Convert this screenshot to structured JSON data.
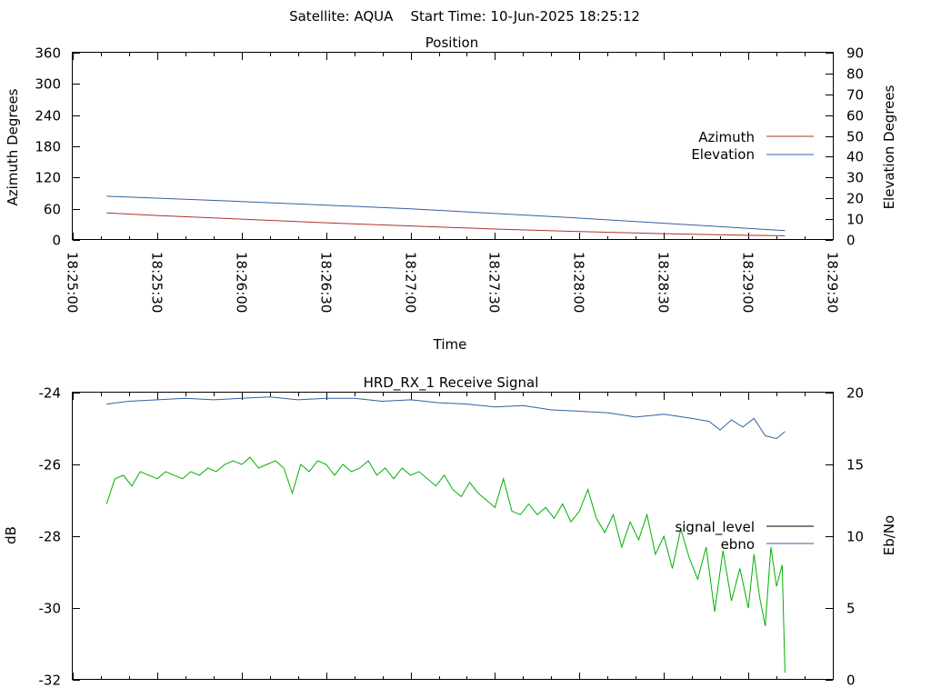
{
  "header": {
    "text": "Satellite: AQUA    Start Time: 10-Jun-2025 18:25:12"
  },
  "chart_data": [
    {
      "type": "line",
      "title": "Position",
      "xlabel": "Time",
      "ylabel": "Azimuth Degrees",
      "y2label": "Elevation Degrees",
      "x_ticks": [
        "18:25:00",
        "18:25:30",
        "18:26:00",
        "18:26:30",
        "18:27:00",
        "18:27:30",
        "18:28:00",
        "18:28:30",
        "18:29:00",
        "18:29:30"
      ],
      "xlim_seconds": [
        0,
        270
      ],
      "ylim": [
        0,
        360
      ],
      "y_ticks": [
        0,
        60,
        120,
        180,
        240,
        300,
        360
      ],
      "y2lim": [
        0,
        90
      ],
      "y2_ticks": [
        0,
        10,
        20,
        30,
        40,
        50,
        60,
        70,
        80,
        90
      ],
      "legend_position": "right",
      "series": [
        {
          "name": "Azimuth",
          "axis": "left",
          "color": "#b03030",
          "x_seconds": [
            12,
            30,
            60,
            90,
            120,
            150,
            180,
            210,
            240,
            253
          ],
          "values": [
            52,
            47,
            40,
            33,
            27,
            21,
            16,
            12,
            9,
            8
          ]
        },
        {
          "name": "Elevation",
          "axis": "right",
          "color": "#3060a0",
          "x_seconds": [
            12,
            60,
            120,
            180,
            253
          ],
          "values": [
            21,
            18.5,
            15,
            10.5,
            4.5
          ]
        }
      ]
    },
    {
      "type": "line",
      "title": "HRD_RX_1 Receive Signal",
      "ylabel": "dB",
      "y2label": "Eb/No",
      "xlim_seconds": [
        0,
        270
      ],
      "ylim": [
        -32,
        -24
      ],
      "y_ticks": [
        -32,
        -30,
        -28,
        -26,
        -24
      ],
      "y2lim": [
        0,
        20
      ],
      "y2_ticks": [
        0,
        5,
        10,
        15,
        20
      ],
      "legend_position": "right",
      "legend_series": [
        {
          "name": "signal_level",
          "color": "#000000"
        },
        {
          "name": "ebno",
          "color": "#3060a0"
        }
      ],
      "series": [
        {
          "name": "",
          "axis": "left",
          "color": "#00b000",
          "x_seconds": [
            12,
            15,
            18,
            21,
            24,
            27,
            30,
            33,
            36,
            39,
            42,
            45,
            48,
            51,
            54,
            57,
            60,
            63,
            66,
            69,
            72,
            75,
            78,
            81,
            84,
            87,
            90,
            93,
            96,
            99,
            102,
            105,
            108,
            111,
            114,
            117,
            120,
            123,
            126,
            129,
            132,
            135,
            138,
            141,
            144,
            147,
            150,
            153,
            156,
            159,
            162,
            165,
            168,
            171,
            174,
            177,
            180,
            183,
            186,
            189,
            192,
            195,
            198,
            201,
            204,
            207,
            210,
            213,
            216,
            219,
            222,
            225,
            228,
            231,
            234,
            237,
            240,
            242,
            244,
            246,
            248,
            250,
            252,
            253
          ],
          "values": [
            -27.1,
            -26.4,
            -26.3,
            -26.6,
            -26.2,
            -26.3,
            -26.4,
            -26.2,
            -26.3,
            -26.4,
            -26.2,
            -26.3,
            -26.1,
            -26.2,
            -26.0,
            -25.9,
            -26.0,
            -25.8,
            -26.1,
            -26.0,
            -25.9,
            -26.1,
            -26.8,
            -26.0,
            -26.2,
            -25.9,
            -26.0,
            -26.3,
            -26.0,
            -26.2,
            -26.1,
            -25.9,
            -26.3,
            -26.1,
            -26.4,
            -26.1,
            -26.3,
            -26.2,
            -26.4,
            -26.6,
            -26.3,
            -26.7,
            -26.9,
            -26.5,
            -26.8,
            -27.0,
            -27.2,
            -26.4,
            -27.3,
            -27.4,
            -27.1,
            -27.4,
            -27.2,
            -27.5,
            -27.1,
            -27.6,
            -27.3,
            -26.7,
            -27.5,
            -27.9,
            -27.4,
            -28.3,
            -27.6,
            -28.1,
            -27.4,
            -28.5,
            -28.0,
            -28.9,
            -27.8,
            -28.6,
            -29.2,
            -28.3,
            -30.1,
            -28.4,
            -29.8,
            -28.9,
            -30.0,
            -28.5,
            -29.7,
            -30.5,
            -28.3,
            -29.4,
            -28.8,
            -31.8
          ],
          "extra_note": ""
        },
        {
          "name": "",
          "axis": "right",
          "color": "#3060a0",
          "x_seconds": [
            12,
            20,
            30,
            40,
            50,
            60,
            70,
            80,
            90,
            100,
            110,
            120,
            130,
            140,
            150,
            160,
            170,
            180,
            190,
            200,
            210,
            220,
            226,
            230,
            234,
            238,
            242,
            246,
            250,
            253
          ],
          "values": [
            19.2,
            19.4,
            19.5,
            19.6,
            19.5,
            19.6,
            19.7,
            19.5,
            19.6,
            19.6,
            19.4,
            19.5,
            19.3,
            19.2,
            19.0,
            19.1,
            18.8,
            18.7,
            18.6,
            18.3,
            18.5,
            18.2,
            18.0,
            17.4,
            18.1,
            17.6,
            18.2,
            17.0,
            16.8,
            17.3
          ]
        }
      ]
    }
  ]
}
